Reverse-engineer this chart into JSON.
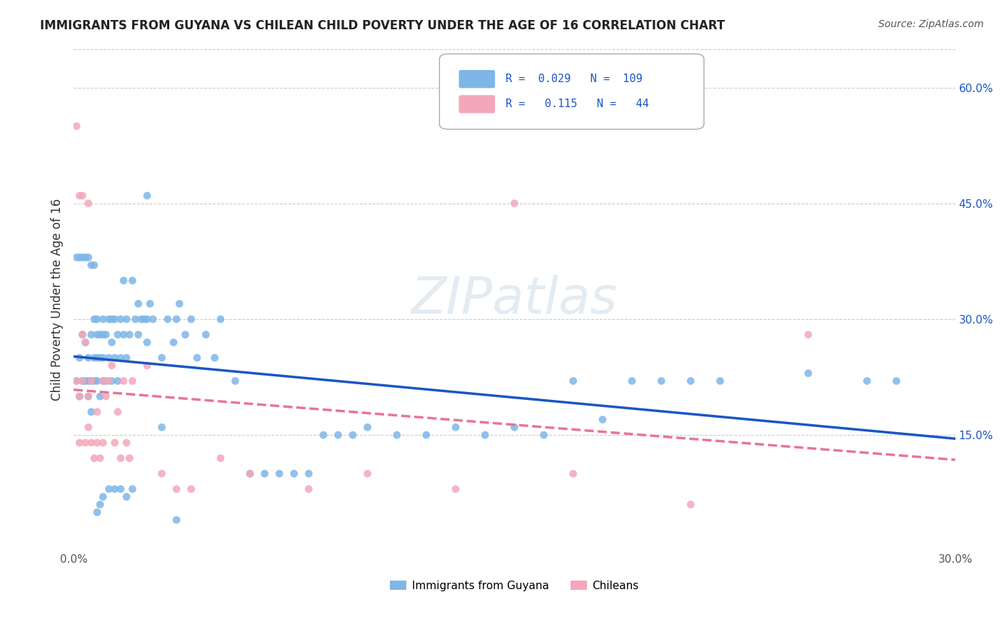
{
  "title": "IMMIGRANTS FROM GUYANA VS CHILEAN CHILD POVERTY UNDER THE AGE OF 16 CORRELATION CHART",
  "source": "Source: ZipAtlas.com",
  "xlabel": "",
  "ylabel": "Child Poverty Under the Age of 16",
  "xlim": [
    0.0,
    0.3
  ],
  "ylim": [
    0.0,
    0.65
  ],
  "xticks": [
    0.0,
    0.05,
    0.1,
    0.15,
    0.2,
    0.25,
    0.3
  ],
  "xtick_labels": [
    "0.0%",
    "",
    "",
    "",
    "",
    "",
    "30.0%"
  ],
  "ytick_labels_right": [
    "60.0%",
    "45.0%",
    "30.0%",
    "15.0%"
  ],
  "ytick_positions_right": [
    0.6,
    0.45,
    0.3,
    0.15
  ],
  "legend_r1": "R =  0.029",
  "legend_n1": "N =  109",
  "legend_r2": "R =   0.115",
  "legend_n2": "N =   44",
  "color_blue": "#7eb6e8",
  "color_pink": "#f4a7b9",
  "color_line_blue": "#1a56c4",
  "color_line_pink": "#e8749a",
  "color_legend_text": "#1a56c4",
  "watermark": "ZIPatlas",
  "background_color": "#ffffff",
  "grid_color": "#cccccc",
  "blue_scatter_x": [
    0.001,
    0.002,
    0.002,
    0.003,
    0.003,
    0.004,
    0.004,
    0.005,
    0.005,
    0.005,
    0.006,
    0.006,
    0.006,
    0.007,
    0.007,
    0.007,
    0.008,
    0.008,
    0.008,
    0.008,
    0.009,
    0.009,
    0.009,
    0.01,
    0.01,
    0.01,
    0.01,
    0.011,
    0.011,
    0.012,
    0.012,
    0.013,
    0.013,
    0.013,
    0.014,
    0.014,
    0.015,
    0.015,
    0.016,
    0.016,
    0.017,
    0.017,
    0.018,
    0.018,
    0.019,
    0.02,
    0.021,
    0.022,
    0.022,
    0.023,
    0.024,
    0.025,
    0.025,
    0.026,
    0.027,
    0.03,
    0.032,
    0.034,
    0.035,
    0.036,
    0.038,
    0.04,
    0.042,
    0.045,
    0.048,
    0.05,
    0.055,
    0.06,
    0.065,
    0.07,
    0.075,
    0.08,
    0.085,
    0.09,
    0.095,
    0.1,
    0.11,
    0.12,
    0.13,
    0.14,
    0.15,
    0.16,
    0.17,
    0.18,
    0.19,
    0.2,
    0.21,
    0.22,
    0.25,
    0.27,
    0.28,
    0.001,
    0.002,
    0.003,
    0.004,
    0.005,
    0.006,
    0.007,
    0.008,
    0.009,
    0.01,
    0.012,
    0.014,
    0.016,
    0.018,
    0.02,
    0.025,
    0.03,
    0.035
  ],
  "blue_scatter_y": [
    0.22,
    0.25,
    0.2,
    0.28,
    0.22,
    0.27,
    0.22,
    0.2,
    0.25,
    0.22,
    0.28,
    0.22,
    0.18,
    0.3,
    0.25,
    0.22,
    0.3,
    0.28,
    0.25,
    0.22,
    0.28,
    0.25,
    0.2,
    0.3,
    0.28,
    0.25,
    0.22,
    0.28,
    0.22,
    0.3,
    0.25,
    0.3,
    0.27,
    0.22,
    0.3,
    0.25,
    0.28,
    0.22,
    0.3,
    0.25,
    0.35,
    0.28,
    0.3,
    0.25,
    0.28,
    0.35,
    0.3,
    0.32,
    0.28,
    0.3,
    0.3,
    0.3,
    0.27,
    0.32,
    0.3,
    0.25,
    0.3,
    0.27,
    0.3,
    0.32,
    0.28,
    0.3,
    0.25,
    0.28,
    0.25,
    0.3,
    0.22,
    0.1,
    0.1,
    0.1,
    0.1,
    0.1,
    0.15,
    0.15,
    0.15,
    0.16,
    0.15,
    0.15,
    0.16,
    0.15,
    0.16,
    0.15,
    0.22,
    0.17,
    0.22,
    0.22,
    0.22,
    0.22,
    0.23,
    0.22,
    0.22,
    0.38,
    0.38,
    0.38,
    0.38,
    0.38,
    0.37,
    0.37,
    0.05,
    0.06,
    0.07,
    0.08,
    0.08,
    0.08,
    0.07,
    0.08,
    0.46,
    0.16,
    0.04
  ],
  "pink_scatter_x": [
    0.001,
    0.001,
    0.002,
    0.002,
    0.003,
    0.003,
    0.004,
    0.004,
    0.005,
    0.005,
    0.006,
    0.006,
    0.007,
    0.008,
    0.008,
    0.009,
    0.01,
    0.011,
    0.012,
    0.013,
    0.014,
    0.015,
    0.016,
    0.017,
    0.018,
    0.019,
    0.02,
    0.025,
    0.03,
    0.035,
    0.04,
    0.05,
    0.06,
    0.08,
    0.1,
    0.13,
    0.15,
    0.17,
    0.21,
    0.25,
    0.002,
    0.003,
    0.005,
    0.01
  ],
  "pink_scatter_y": [
    0.55,
    0.22,
    0.2,
    0.14,
    0.28,
    0.22,
    0.27,
    0.14,
    0.2,
    0.16,
    0.22,
    0.14,
    0.12,
    0.18,
    0.14,
    0.12,
    0.14,
    0.2,
    0.22,
    0.24,
    0.14,
    0.18,
    0.12,
    0.22,
    0.14,
    0.12,
    0.22,
    0.24,
    0.1,
    0.08,
    0.08,
    0.12,
    0.1,
    0.08,
    0.1,
    0.08,
    0.45,
    0.1,
    0.06,
    0.28,
    0.46,
    0.46,
    0.45,
    0.22
  ]
}
